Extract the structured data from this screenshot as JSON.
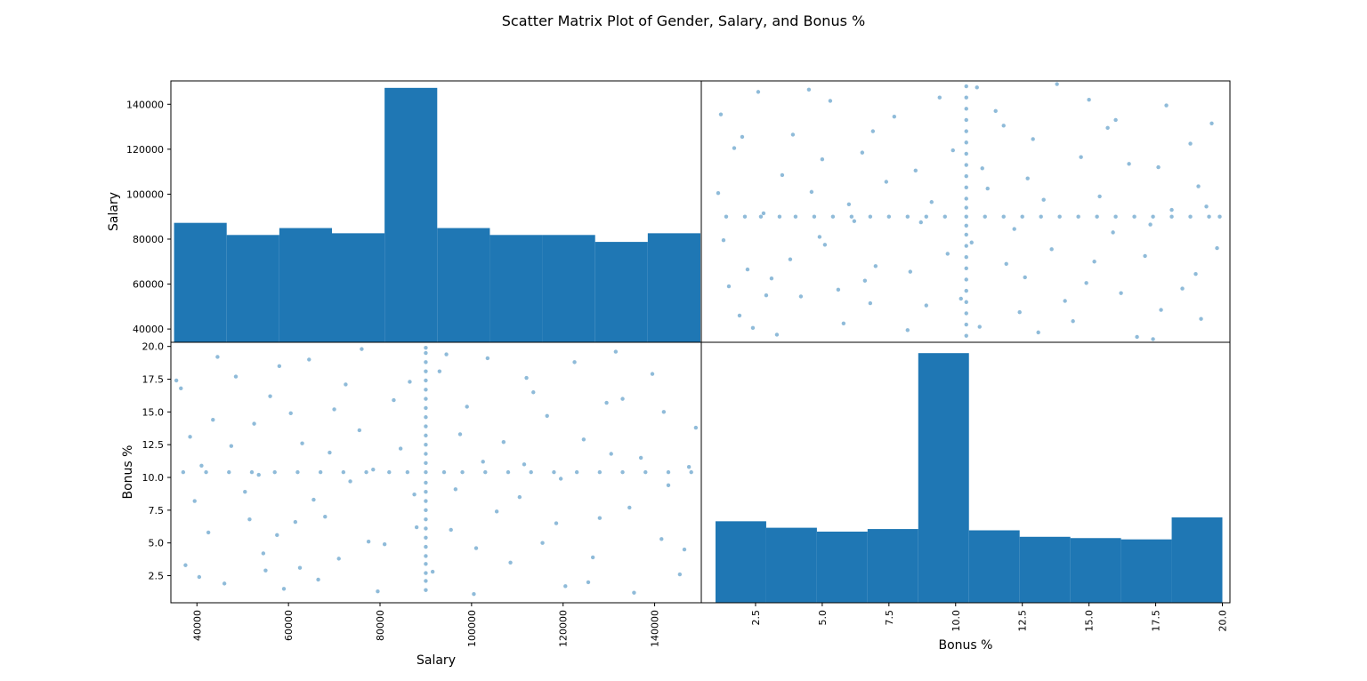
{
  "colors": {
    "accent": "#1f77b4",
    "frame": "#000000"
  },
  "chart_data": {
    "type": "scatter_matrix",
    "title": "Scatter Matrix Plot of Gender, Salary, and Bonus %",
    "variables": [
      "Salary",
      "Bonus %"
    ],
    "axes": {
      "salary": {
        "label": "Salary",
        "range": [
          34500,
          150000
        ],
        "ticks": [
          "40000",
          "60000",
          "80000",
          "100000",
          "120000",
          "140000"
        ]
      },
      "bonus": {
        "label": "Bonus %",
        "range": [
          0.5,
          20.25
        ],
        "ticks": [
          "2.5",
          "5.0",
          "7.5",
          "10.0",
          "12.5",
          "15.0",
          "17.5",
          "20.0"
        ]
      }
    },
    "salary_histogram": {
      "bin_edges": [
        35000,
        46500,
        58000,
        69500,
        81000,
        92500,
        104000,
        115500,
        127000,
        138500,
        150000
      ],
      "counts": [
        69,
        62,
        66,
        63,
        147,
        66,
        62,
        62,
        58,
        63
      ],
      "y_range": [
        0,
        150
      ]
    },
    "bonus_histogram": {
      "bin_edges": [
        1.0,
        2.9,
        4.8,
        6.7,
        8.6,
        10.5,
        12.4,
        14.3,
        16.2,
        18.1,
        20.0
      ],
      "counts": [
        63,
        58,
        55,
        57,
        193,
        56,
        51,
        50,
        49,
        66
      ],
      "y_range": [
        0,
        200
      ]
    },
    "imputed_means": {
      "salary": 90000,
      "bonus": 10.4
    },
    "points": [
      [
        44500,
        19.2
      ],
      [
        71000,
        3.8
      ],
      [
        128000,
        6.9
      ],
      [
        52500,
        14.1
      ],
      [
        112000,
        17.6
      ],
      [
        66500,
        2.2
      ],
      [
        137000,
        11.5
      ],
      [
        39500,
        8.2
      ],
      [
        83000,
        15.9
      ],
      [
        101000,
        4.6
      ],
      [
        47500,
        12.4
      ],
      [
        120500,
        1.7
      ],
      [
        58000,
        18.5
      ],
      [
        96500,
        9.1
      ],
      [
        141500,
        5.3
      ],
      [
        75500,
        13.6
      ],
      [
        36500,
        16.8
      ],
      [
        105500,
        7.4
      ],
      [
        62500,
        3.1
      ],
      [
        131500,
        19.6
      ],
      [
        88000,
        6.2
      ],
      [
        50500,
        8.9
      ],
      [
        116500,
        14.7
      ],
      [
        69000,
        11.9
      ],
      [
        145500,
        2.6
      ],
      [
        42500,
        5.8
      ],
      [
        93000,
        18.1
      ],
      [
        79500,
        1.3
      ],
      [
        124500,
        12.9
      ],
      [
        56000,
        16.2
      ],
      [
        108500,
        3.5
      ],
      [
        73500,
        9.7
      ],
      [
        38500,
        13.1
      ],
      [
        134500,
        7.7
      ],
      [
        99000,
        15.4
      ],
      [
        64500,
        19.0
      ],
      [
        147500,
        10.8
      ],
      [
        54500,
        4.2
      ],
      [
        86500,
        17.3
      ],
      [
        118500,
        6.5
      ],
      [
        46000,
        1.9
      ],
      [
        102500,
        11.2
      ],
      [
        77500,
        5.1
      ],
      [
        139500,
        17.9
      ],
      [
        60500,
        14.9
      ],
      [
        126500,
        3.9
      ],
      [
        41000,
        10.9
      ],
      [
        91500,
        2.8
      ],
      [
        113500,
        16.5
      ],
      [
        68000,
        7.0
      ],
      [
        149000,
        13.8
      ],
      [
        51500,
        6.8
      ],
      [
        84500,
        12.2
      ],
      [
        122500,
        18.8
      ],
      [
        59000,
        1.5
      ],
      [
        97500,
        13.3
      ],
      [
        143000,
        9.4
      ],
      [
        72500,
        17.1
      ],
      [
        37500,
        3.3
      ],
      [
        110500,
        8.5
      ],
      [
        81000,
        4.9
      ],
      [
        129500,
        15.7
      ],
      [
        48500,
        17.7
      ],
      [
        65500,
        8.3
      ],
      [
        135500,
        1.2
      ],
      [
        94500,
        19.4
      ],
      [
        57500,
        5.6
      ],
      [
        107000,
        12.7
      ],
      [
        43500,
        14.4
      ],
      [
        119500,
        9.9
      ],
      [
        76000,
        19.8
      ],
      [
        146500,
        4.5
      ],
      [
        63000,
        12.6
      ],
      [
        100500,
        1.1
      ],
      [
        133000,
        16.0
      ],
      [
        40500,
        2.4
      ],
      [
        87500,
        8.7
      ],
      [
        115500,
        5.0
      ],
      [
        70000,
        15.2
      ],
      [
        53500,
        10.2
      ],
      [
        125500,
        2.0
      ],
      [
        95500,
        6.0
      ],
      [
        142000,
        15.0
      ],
      [
        61500,
        6.6
      ],
      [
        103500,
        19.1
      ],
      [
        78500,
        10.6
      ],
      [
        35500,
        17.4
      ],
      [
        130500,
        11.8
      ],
      [
        55000,
        2.9
      ],
      [
        111500,
        11.0
      ],
      [
        90000,
        1.4
      ],
      [
        90000,
        2.1
      ],
      [
        90000,
        2.7
      ],
      [
        90000,
        3.4
      ],
      [
        90000,
        4.0
      ],
      [
        90000,
        4.7
      ],
      [
        90000,
        5.4
      ],
      [
        90000,
        6.1
      ],
      [
        90000,
        6.8
      ],
      [
        90000,
        7.5
      ],
      [
        90000,
        8.2
      ],
      [
        90000,
        8.9
      ],
      [
        90000,
        9.6
      ],
      [
        90000,
        11.1
      ],
      [
        90000,
        11.8
      ],
      [
        90000,
        12.5
      ],
      [
        90000,
        13.2
      ],
      [
        90000,
        13.9
      ],
      [
        90000,
        14.6
      ],
      [
        90000,
        15.3
      ],
      [
        90000,
        16.0
      ],
      [
        90000,
        16.7
      ],
      [
        90000,
        17.4
      ],
      [
        90000,
        18.1
      ],
      [
        90000,
        18.8
      ],
      [
        90000,
        19.5
      ],
      [
        90000,
        19.9
      ],
      [
        90000,
        10.4
      ],
      [
        37000,
        10.4
      ],
      [
        42000,
        10.4
      ],
      [
        47000,
        10.4
      ],
      [
        52000,
        10.4
      ],
      [
        57000,
        10.4
      ],
      [
        62000,
        10.4
      ],
      [
        67000,
        10.4
      ],
      [
        72000,
        10.4
      ],
      [
        77000,
        10.4
      ],
      [
        82000,
        10.4
      ],
      [
        86000,
        10.4
      ],
      [
        94000,
        10.4
      ],
      [
        98000,
        10.4
      ],
      [
        103000,
        10.4
      ],
      [
        108000,
        10.4
      ],
      [
        113000,
        10.4
      ],
      [
        118000,
        10.4
      ],
      [
        123000,
        10.4
      ],
      [
        128000,
        10.4
      ],
      [
        133000,
        10.4
      ],
      [
        138000,
        10.4
      ],
      [
        143000,
        10.4
      ],
      [
        148000,
        10.4
      ]
    ]
  }
}
